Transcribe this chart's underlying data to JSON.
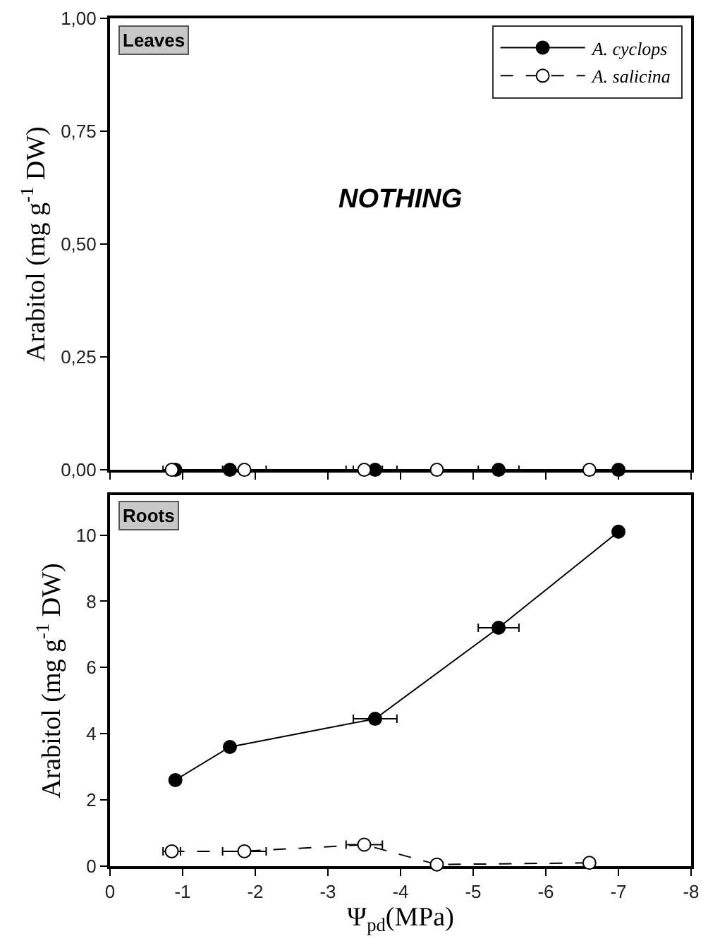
{
  "chart_data": [
    {
      "type": "line",
      "ylabel": "Arabitol (mg g$^{-1}$ DW)",
      "annotations": [
        "Leaves",
        "NOTHING"
      ],
      "xlim": [
        0,
        -8
      ],
      "xticks": [
        0,
        -1,
        -2,
        -3,
        -4,
        -5,
        -6,
        -7,
        -8
      ],
      "ylim": [
        0,
        1
      ],
      "yticks": [
        {
          "value": 0,
          "label": "0,00"
        },
        {
          "value": 0.25,
          "label": "0,25"
        },
        {
          "value": 0.5,
          "label": "0,50"
        },
        {
          "value": 0.75,
          "label": "0,75"
        },
        {
          "value": 1,
          "label": "1,00"
        }
      ],
      "tick_labels": "y",
      "legend": "top right",
      "marker": "circle",
      "series": [
        {
          "color": "#000000",
          "line_style": "solid",
          "x": [
            -0.9,
            -1.65,
            -3.65,
            -5.35,
            -7.0
          ],
          "values": [
            0,
            0,
            0,
            0,
            0
          ],
          "xerrors": [
            null,
            null,
            0.3,
            0.28,
            null
          ]
        },
        {
          "type": "scatter",
          "color": "#000000",
          "marker": "circle_open",
          "x": [
            -0.85,
            -1.85,
            -3.5,
            -4.5,
            -6.6
          ],
          "values": [
            0,
            0,
            0,
            0,
            0
          ],
          "xerrors": [
            0.12,
            0.3,
            0.25,
            null,
            null
          ]
        }
      ]
    },
    {
      "type": "line",
      "xlabel": "Ψ$_{pd}$(MPa)",
      "ylabel": "Arabitol (mg g$^{-1}$ DW)",
      "annotations": [
        "Roots"
      ],
      "xlim": [
        0,
        -8
      ],
      "xticks": [
        0,
        -1,
        -2,
        -3,
        -4,
        -5,
        -6,
        -7,
        -8
      ],
      "ylim": [
        0,
        11.2
      ],
      "yticks": [
        0,
        2,
        4,
        6,
        8,
        10
      ],
      "legend": "top right",
      "marker": "circle",
      "series": [
        {
          "name": "A. cyclops",
          "color": "#000000",
          "line_style": "solid",
          "x": [
            -0.9,
            -1.65,
            -3.65,
            -5.35,
            -7.0
          ],
          "values": [
            2.6,
            3.6,
            4.45,
            7.2,
            10.1
          ],
          "xerrors": [
            null,
            null,
            0.3,
            0.28,
            null
          ]
        },
        {
          "name": "A. salicina",
          "color": "#000000",
          "marker": "circle_open",
          "line_style": "dashed",
          "x": [
            -0.85,
            -1.85,
            -3.5,
            -4.5,
            -6.6
          ],
          "values": [
            0.45,
            0.45,
            0.65,
            0.05,
            0.1
          ],
          "xerrors": [
            0.12,
            0.3,
            0.25,
            null,
            null
          ]
        }
      ]
    }
  ]
}
